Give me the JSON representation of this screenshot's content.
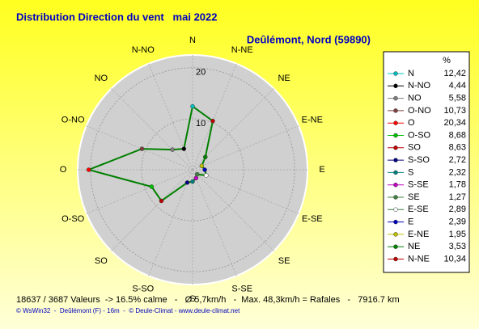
{
  "chart_data": {
    "type": "radar",
    "title": "Distribution Direction du vent   mai 2022",
    "subtitle": "Deûlémont, Nord (59890)",
    "legend_title": "%",
    "footer": "18637 / 3687 Valeurs  -> 16.5% calme   -   Ø 5,7km/h   -  Max. 48,3km/h = Rafales   -   7916.7 km",
    "credit": "© WsWin32  -  Deûlémont (F) - 16m  -  © Deule-Climat - www.deule-climat.net",
    "categories": [
      "N",
      "N-NO",
      "NO",
      "O-NO",
      "O",
      "O-SO",
      "SO",
      "S-SO",
      "S",
      "S-SE",
      "SE",
      "E-SE",
      "E",
      "E-NE",
      "NE",
      "N-NE"
    ],
    "values": [
      12.42,
      4.44,
      5.58,
      10.73,
      20.34,
      8.68,
      8.63,
      2.72,
      2.32,
      1.78,
      1.27,
      2.89,
      2.39,
      1.95,
      3.53,
      10.34
    ],
    "value_labels": [
      "12,42",
      "4,44",
      "5,58",
      "10,73",
      "20,34",
      "8,68",
      "8,63",
      "2,72",
      "2,32",
      "1,78",
      "1,27",
      "2,89",
      "2,39",
      "1,95",
      "3,53",
      "10,34"
    ],
    "colors": [
      "#00c0c0",
      "#000000",
      "#808080",
      "#804040",
      "#ff0000",
      "#00c000",
      "#c00000",
      "#000080",
      "#008080",
      "#c000c0",
      "#408040",
      "#ffffff",
      "#0000c0",
      "#c0c000",
      "#008000",
      "#c00000"
    ],
    "line_color": "#008000",
    "rlim": [
      0,
      22.5
    ],
    "rticks": [
      10,
      20
    ]
  }
}
